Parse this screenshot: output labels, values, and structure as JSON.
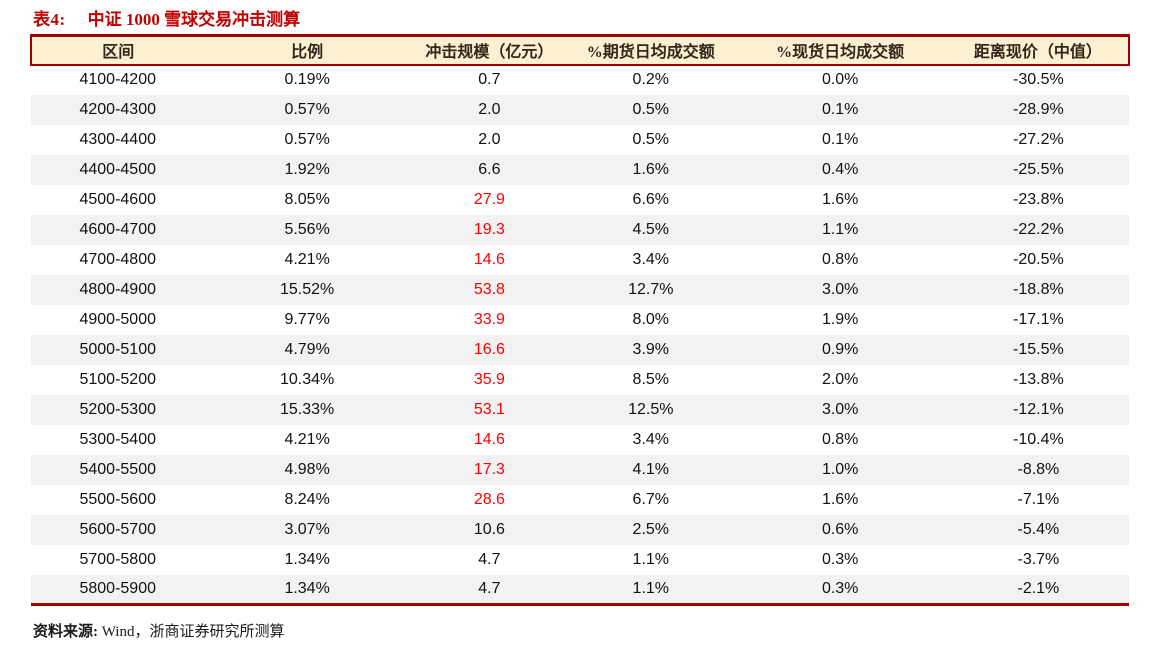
{
  "page": {
    "title_label": "表4:",
    "title_text": "中证 1000 雪球交易冲击测算",
    "source_label": "资料来源:",
    "source_text": "Wind，浙商证券研究所测算"
  },
  "colors": {
    "accent_red": "#C00000",
    "border_red": "#A00000",
    "header_bg": "#FCF0D2",
    "header_text": "#33261A",
    "stripe": "#F2F2F2",
    "value_red": "#FF0000",
    "text_black": "#111111"
  },
  "table": {
    "columns": [
      "区间",
      "比例",
      "冲击规模（亿元）",
      "%期货日均成交额",
      "%现货日均成交额",
      "距离现价（中值）"
    ],
    "rows": [
      {
        "range": "4100-4200",
        "ratio": "0.19%",
        "impact": "0.7",
        "impact_red": false,
        "futures": "0.2%",
        "spot": "0.0%",
        "distance": "-30.5%"
      },
      {
        "range": "4200-4300",
        "ratio": "0.57%",
        "impact": "2.0",
        "impact_red": false,
        "futures": "0.5%",
        "spot": "0.1%",
        "distance": "-28.9%"
      },
      {
        "range": "4300-4400",
        "ratio": "0.57%",
        "impact": "2.0",
        "impact_red": false,
        "futures": "0.5%",
        "spot": "0.1%",
        "distance": "-27.2%"
      },
      {
        "range": "4400-4500",
        "ratio": "1.92%",
        "impact": "6.6",
        "impact_red": false,
        "futures": "1.6%",
        "spot": "0.4%",
        "distance": "-25.5%"
      },
      {
        "range": "4500-4600",
        "ratio": "8.05%",
        "impact": "27.9",
        "impact_red": true,
        "futures": "6.6%",
        "spot": "1.6%",
        "distance": "-23.8%"
      },
      {
        "range": "4600-4700",
        "ratio": "5.56%",
        "impact": "19.3",
        "impact_red": true,
        "futures": "4.5%",
        "spot": "1.1%",
        "distance": "-22.2%"
      },
      {
        "range": "4700-4800",
        "ratio": "4.21%",
        "impact": "14.6",
        "impact_red": true,
        "futures": "3.4%",
        "spot": "0.8%",
        "distance": "-20.5%"
      },
      {
        "range": "4800-4900",
        "ratio": "15.52%",
        "impact": "53.8",
        "impact_red": true,
        "futures": "12.7%",
        "spot": "3.0%",
        "distance": "-18.8%"
      },
      {
        "range": "4900-5000",
        "ratio": "9.77%",
        "impact": "33.9",
        "impact_red": true,
        "futures": "8.0%",
        "spot": "1.9%",
        "distance": "-17.1%"
      },
      {
        "range": "5000-5100",
        "ratio": "4.79%",
        "impact": "16.6",
        "impact_red": true,
        "futures": "3.9%",
        "spot": "0.9%",
        "distance": "-15.5%"
      },
      {
        "range": "5100-5200",
        "ratio": "10.34%",
        "impact": "35.9",
        "impact_red": true,
        "futures": "8.5%",
        "spot": "2.0%",
        "distance": "-13.8%"
      },
      {
        "range": "5200-5300",
        "ratio": "15.33%",
        "impact": "53.1",
        "impact_red": true,
        "futures": "12.5%",
        "spot": "3.0%",
        "distance": "-12.1%"
      },
      {
        "range": "5300-5400",
        "ratio": "4.21%",
        "impact": "14.6",
        "impact_red": true,
        "futures": "3.4%",
        "spot": "0.8%",
        "distance": "-10.4%"
      },
      {
        "range": "5400-5500",
        "ratio": "4.98%",
        "impact": "17.3",
        "impact_red": true,
        "futures": "4.1%",
        "spot": "1.0%",
        "distance": "-8.8%"
      },
      {
        "range": "5500-5600",
        "ratio": "8.24%",
        "impact": "28.6",
        "impact_red": true,
        "futures": "6.7%",
        "spot": "1.6%",
        "distance": "-7.1%"
      },
      {
        "range": "5600-5700",
        "ratio": "3.07%",
        "impact": "10.6",
        "impact_red": false,
        "futures": "2.5%",
        "spot": "0.6%",
        "distance": "-5.4%"
      },
      {
        "range": "5700-5800",
        "ratio": "1.34%",
        "impact": "4.7",
        "impact_red": false,
        "futures": "1.1%",
        "spot": "0.3%",
        "distance": "-3.7%"
      },
      {
        "range": "5800-5900",
        "ratio": "1.34%",
        "impact": "4.7",
        "impact_red": false,
        "futures": "1.1%",
        "spot": "0.3%",
        "distance": "-2.1%"
      }
    ]
  }
}
